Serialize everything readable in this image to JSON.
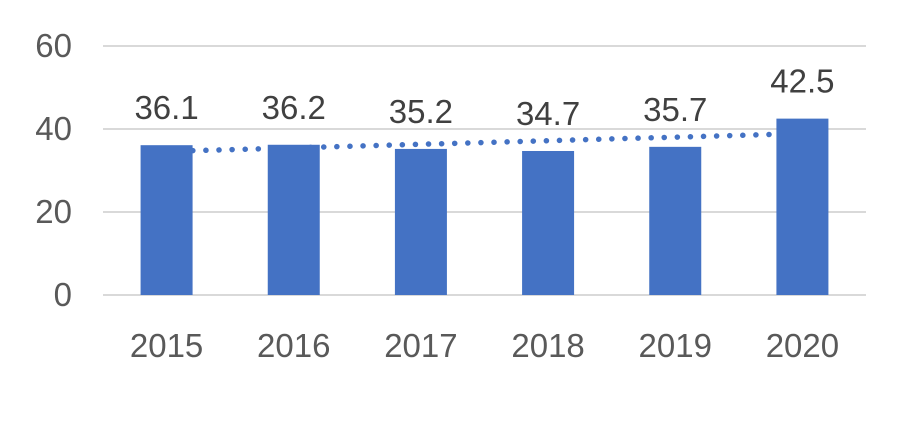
{
  "chart_data": {
    "type": "bar",
    "title": "",
    "categories": [
      "2015",
      "2016",
      "2017",
      "2018",
      "2019",
      "2020"
    ],
    "values": [
      36.1,
      36.2,
      35.2,
      34.7,
      35.7,
      42.5
    ],
    "data_labels": [
      "36.1",
      "36.2",
      "35.2",
      "34.7",
      "35.7",
      "42.5"
    ],
    "xlabel": "",
    "ylabel": "",
    "ylim": [
      0,
      60
    ],
    "yticks": [
      0,
      20,
      40,
      60
    ],
    "ytick_labels": [
      "0",
      "20",
      "40",
      "60"
    ],
    "grid": true,
    "legend_position": "none",
    "bar_color": "#4472C4",
    "gridline_color": "#D9D9D9",
    "axis_tick_label_color": "#595959",
    "data_label_color": "#404040",
    "background_color": "#FFFFFF",
    "trendline": {
      "type": "linear",
      "style": "dotted",
      "color": "#4472C4",
      "start_value": 34.6,
      "end_value": 38.9
    }
  }
}
